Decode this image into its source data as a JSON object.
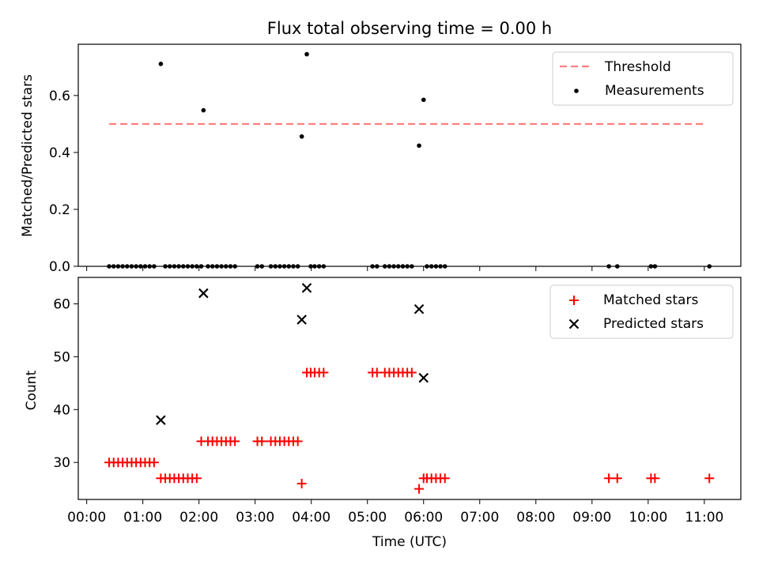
{
  "chart_data": [
    {
      "type": "scatter",
      "title": "Flux total observing time = 0.00 h",
      "xlabel": "",
      "ylabel": "Matched/Predicted stars",
      "xlim": [
        -0.15,
        11.65
      ],
      "ylim": [
        0,
        0.78
      ],
      "yticks": [
        0.0,
        0.2,
        0.4,
        0.6
      ],
      "ytick_labels": [
        "0.0",
        "0.2",
        "0.4",
        "0.6"
      ],
      "legend_position": "upper right",
      "threshold": {
        "name": "Threshold",
        "value": 0.5,
        "x_range": [
          0.4,
          11.0
        ],
        "color": "#ff7f7f",
        "style": "dashed"
      },
      "series": [
        {
          "name": "Measurements",
          "color": "#000000",
          "marker": "dot",
          "x": [
            0.4,
            0.48,
            0.56,
            0.64,
            0.72,
            0.8,
            0.88,
            0.96,
            1.04,
            1.12,
            1.2,
            1.32,
            1.4,
            1.48,
            1.56,
            1.64,
            1.72,
            1.8,
            1.88,
            1.96,
            2.04,
            2.08,
            2.16,
            2.24,
            2.32,
            2.4,
            2.48,
            2.56,
            2.64,
            3.04,
            3.12,
            3.28,
            3.36,
            3.44,
            3.52,
            3.6,
            3.68,
            3.76,
            3.83,
            3.92,
            3.99,
            4.06,
            4.14,
            4.22,
            5.09,
            5.17,
            5.31,
            5.39,
            5.47,
            5.55,
            5.63,
            5.71,
            5.79,
            5.92,
            6.0,
            6.06,
            6.14,
            6.22,
            6.3,
            6.38,
            9.3,
            9.45,
            10.05,
            10.12,
            11.09
          ],
          "y": [
            0,
            0,
            0,
            0,
            0,
            0,
            0,
            0,
            0,
            0,
            0,
            0.711,
            0,
            0,
            0,
            0,
            0,
            0,
            0,
            0,
            0,
            0.548,
            0,
            0,
            0,
            0,
            0,
            0,
            0,
            0,
            0,
            0,
            0,
            0,
            0,
            0,
            0,
            0,
            0.456,
            0.745,
            0,
            0,
            0,
            0,
            0,
            0,
            0,
            0,
            0,
            0,
            0,
            0,
            0,
            0.424,
            0.585,
            0,
            0,
            0,
            0,
            0,
            0,
            0,
            0,
            0,
            0
          ]
        }
      ]
    },
    {
      "type": "scatter",
      "title": "",
      "xlabel": "Time (UTC)",
      "ylabel": "Count",
      "xlim": [
        -0.15,
        11.65
      ],
      "ylim": [
        23,
        65
      ],
      "xticks": [
        0,
        1,
        2,
        3,
        4,
        5,
        6,
        7,
        8,
        9,
        10,
        11
      ],
      "xtick_labels": [
        "00:00",
        "01:00",
        "02:00",
        "03:00",
        "04:00",
        "05:00",
        "06:00",
        "07:00",
        "08:00",
        "09:00",
        "10:00",
        "11:00"
      ],
      "yticks": [
        30,
        40,
        50,
        60
      ],
      "ytick_labels": [
        "30",
        "40",
        "50",
        "60"
      ],
      "legend_position": "upper right",
      "series": [
        {
          "name": "Matched stars",
          "color": "#ff0000",
          "marker": "plus",
          "x": [
            0.4,
            0.48,
            0.56,
            0.64,
            0.72,
            0.8,
            0.88,
            0.96,
            1.04,
            1.12,
            1.2,
            1.32,
            1.4,
            1.48,
            1.56,
            1.64,
            1.72,
            1.8,
            1.88,
            1.96,
            2.04,
            2.16,
            2.24,
            2.32,
            2.4,
            2.48,
            2.56,
            2.64,
            3.04,
            3.12,
            3.28,
            3.36,
            3.44,
            3.52,
            3.6,
            3.68,
            3.76,
            3.83,
            3.92,
            3.99,
            4.06,
            4.14,
            4.22,
            5.09,
            5.17,
            5.31,
            5.39,
            5.47,
            5.55,
            5.63,
            5.71,
            5.79,
            5.92,
            6.0,
            6.06,
            6.14,
            6.22,
            6.3,
            6.38,
            9.3,
            9.45,
            10.05,
            10.12,
            11.09
          ],
          "y": [
            30,
            30,
            30,
            30,
            30,
            30,
            30,
            30,
            30,
            30,
            30,
            27,
            27,
            27,
            27,
            27,
            27,
            27,
            27,
            27,
            34,
            34,
            34,
            34,
            34,
            34,
            34,
            34,
            34,
            34,
            34,
            34,
            34,
            34,
            34,
            34,
            34,
            26,
            47,
            47,
            47,
            47,
            47,
            47,
            47,
            47,
            47,
            47,
            47,
            47,
            47,
            47,
            25,
            27,
            27,
            27,
            27,
            27,
            27,
            27,
            27,
            27,
            27,
            27
          ]
        },
        {
          "name": "Predicted stars",
          "color": "#000000",
          "marker": "x",
          "x": [
            1.32,
            2.08,
            3.83,
            3.92,
            5.92,
            6.0
          ],
          "y": [
            38,
            62,
            57,
            63,
            59,
            46
          ]
        }
      ]
    }
  ]
}
